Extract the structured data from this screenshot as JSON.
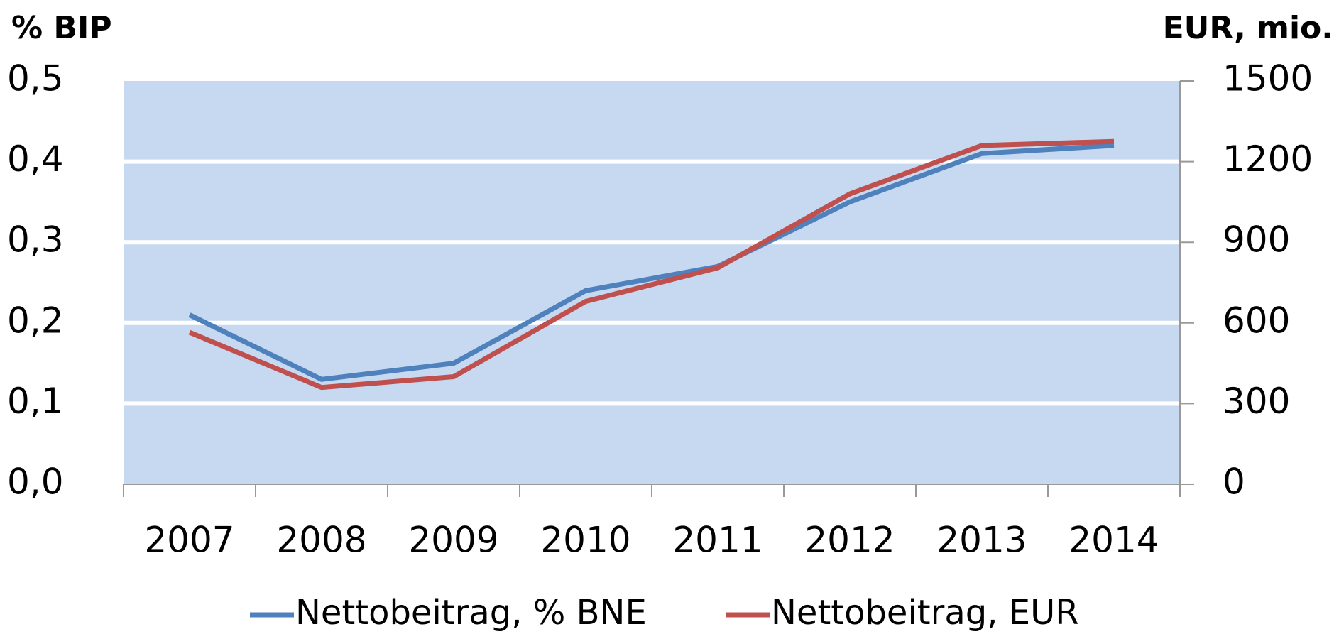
{
  "chart_data": {
    "type": "line",
    "y_axis_label": "% BIP",
    "y2_axis_label": "EUR, mio.",
    "categories": [
      "2007",
      "2008",
      "2009",
      "2010",
      "2011",
      "2012",
      "2013",
      "2014"
    ],
    "series": [
      {
        "name": "Nettobeitrag, % BNE",
        "color": "#4f81bd",
        "values": [
          0.21,
          0.13,
          0.15,
          0.24,
          0.27,
          0.35,
          0.41,
          0.42
        ]
      },
      {
        "name": "Nettobeitrag, EUR",
        "color": "#c0504d",
        "axis": "y2",
        "values": [
          565,
          360,
          400,
          680,
          805,
          1080,
          1260,
          1275
        ]
      }
    ],
    "ylim": [
      0,
      0.5
    ],
    "yticks": [
      {
        "value": 0,
        "label": "0,0"
      },
      {
        "value": 0.1,
        "label": "0,1"
      },
      {
        "value": 0.2,
        "label": "0,2"
      },
      {
        "value": 0.3,
        "label": "0,3"
      },
      {
        "value": 0.4,
        "label": "0,4"
      },
      {
        "value": 0.5,
        "label": "0,5"
      }
    ],
    "y2lim": [
      0,
      1500
    ],
    "y2ticks": [
      0,
      300,
      600,
      900,
      1200,
      1500
    ],
    "grid": true,
    "plot_background": "#c6d9f1",
    "legend": "bottom"
  }
}
